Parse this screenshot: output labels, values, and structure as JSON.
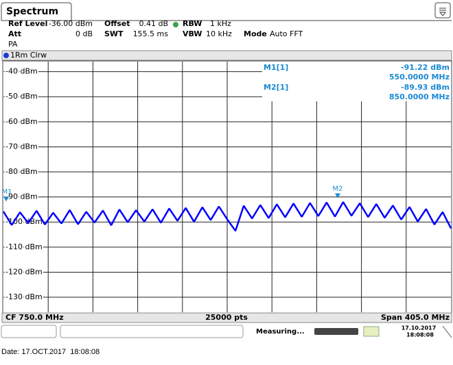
{
  "header": {
    "tab": "Spectrum",
    "ref_level_label": "Ref Level",
    "ref_level": "-36.00 dBm",
    "offset_label": "Offset",
    "offset": "0.41 dB",
    "rbw_label": "RBW",
    "rbw": "1 kHz",
    "att_label": "Att",
    "att": "0 dB",
    "swt_label": "SWT",
    "swt": "155.5 ms",
    "vbw_label": "VBW",
    "vbw": "10 kHz",
    "mode_label": "Mode",
    "mode": "Auto FFT",
    "preamp": "PA",
    "trace": "1Rm Clrw"
  },
  "chart_data": {
    "type": "line",
    "x": [
      547.5,
      555,
      562.5,
      570,
      577.5,
      585,
      592.5,
      600,
      607.5,
      615,
      622.5,
      630,
      637.5,
      645,
      652.5,
      660,
      667.5,
      675,
      682.5,
      690,
      697.5,
      705,
      712.5,
      720,
      727.5,
      735,
      742.5,
      750,
      757.5,
      765,
      772.5,
      780,
      787.5,
      795,
      802.5,
      810,
      817.5,
      825,
      832.5,
      840,
      847.5,
      855,
      862.5,
      870,
      877.5,
      885,
      892.5,
      900,
      907.5,
      915,
      922.5,
      930,
      937.5,
      945,
      952.5
    ],
    "series": [
      {
        "color": "#0000ff",
        "values": [
          -95.8,
          -101.2,
          -96.1,
          -100.4,
          -95.5,
          -101.0,
          -96.3,
          -100.6,
          -95.2,
          -100.9,
          -95.9,
          -100.2,
          -95.4,
          -101.3,
          -95.0,
          -100.1,
          -95.3,
          -99.8,
          -94.9,
          -100.3,
          -94.6,
          -99.5,
          -94.4,
          -99.9,
          -94.1,
          -99.2,
          -93.8,
          -98.9,
          -103.5,
          -93.5,
          -98.6,
          -93.2,
          -98.4,
          -92.9,
          -98.1,
          -92.6,
          -97.9,
          -92.4,
          -97.6,
          -92.2,
          -97.8,
          -92.0,
          -97.5,
          -92.5,
          -98.0,
          -92.8,
          -98.3,
          -93.4,
          -99.0,
          -94.0,
          -99.8,
          -94.8,
          -101.0,
          -96.0,
          -102.5
        ]
      }
    ],
    "xlim": [
      547.5,
      952.5
    ],
    "xticks": [
      588,
      628.5,
      669,
      709.5,
      750,
      790.5,
      831,
      871.5,
      912
    ],
    "ylim": [
      -136,
      -36
    ],
    "yticks": [
      {
        "value": -40,
        "label": "-40 dBm"
      },
      {
        "value": -50,
        "label": "-50 dBm"
      },
      {
        "value": -60,
        "label": "-60 dBm"
      },
      {
        "value": -70,
        "label": "-70 dBm"
      },
      {
        "value": -80,
        "label": "-80 dBm"
      },
      {
        "value": -90,
        "label": "-90 dBm"
      },
      {
        "value": -100,
        "label": "-100 dBm"
      },
      {
        "value": -110,
        "label": "-110 dBm"
      },
      {
        "value": -120,
        "label": "-120 dBm"
      },
      {
        "value": -130,
        "label": "-130 dBm"
      }
    ],
    "grid": true,
    "markers": [
      {
        "label": "M1",
        "table_label": "M1[1]",
        "x": 550,
        "y": -91.22,
        "value_label": "-91.22 dBm",
        "x_label": "550.0000 MHz",
        "color": "#1a8ad4"
      },
      {
        "label": "M2",
        "table_label": "M2[1]",
        "x": 850,
        "y": -89.93,
        "value_label": "-89.93 dBm",
        "x_label": "850.0000 MHz",
        "color": "#1a8ad4"
      }
    ]
  },
  "footer": {
    "cf": "CF 750.0 MHz",
    "points": "25000 pts",
    "span": "Span 405.0 MHz"
  },
  "status": {
    "state": "Measuring...",
    "date": "17.10.2017",
    "time": "18:08:08"
  },
  "caption": "Date: 17.OCT.2017  18:08:08"
}
